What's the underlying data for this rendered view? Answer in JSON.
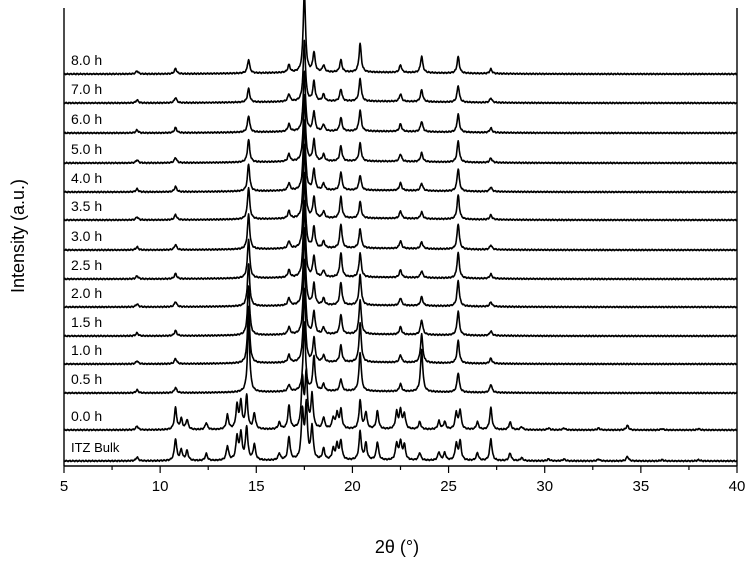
{
  "chart_data": {
    "type": "line",
    "title": "",
    "xlabel": "2θ (°)",
    "ylabel": "Intensity (a.u.)",
    "xlim": [
      5,
      40
    ],
    "xticks": [
      "5",
      "10",
      "15",
      "20",
      "25",
      "30",
      "35",
      "40"
    ],
    "y_ticks_shown": false,
    "stacked_offsets": true,
    "grid": false,
    "series": [
      {
        "name": "ITZ Bulk",
        "peaks": [
          {
            "x": 8.8,
            "h": 0.25
          },
          {
            "x": 10.8,
            "h": 1.45
          },
          {
            "x": 11.1,
            "h": 0.7
          },
          {
            "x": 11.4,
            "h": 0.65
          },
          {
            "x": 12.4,
            "h": 0.45
          },
          {
            "x": 13.5,
            "h": 0.95
          },
          {
            "x": 14.0,
            "h": 1.55
          },
          {
            "x": 14.2,
            "h": 1.75
          },
          {
            "x": 14.5,
            "h": 2.2
          },
          {
            "x": 14.9,
            "h": 1.05
          },
          {
            "x": 16.2,
            "h": 0.45
          },
          {
            "x": 16.7,
            "h": 1.55
          },
          {
            "x": 17.4,
            "h": 3.2
          },
          {
            "x": 17.6,
            "h": 3.6
          },
          {
            "x": 17.9,
            "h": 2.2
          },
          {
            "x": 18.5,
            "h": 0.75
          },
          {
            "x": 19.0,
            "h": 0.7
          },
          {
            "x": 19.2,
            "h": 1.0
          },
          {
            "x": 19.4,
            "h": 1.25
          },
          {
            "x": 20.4,
            "h": 1.9
          },
          {
            "x": 20.7,
            "h": 1.1
          },
          {
            "x": 21.3,
            "h": 1.2
          },
          {
            "x": 22.3,
            "h": 1.1
          },
          {
            "x": 22.5,
            "h": 1.2
          },
          {
            "x": 22.7,
            "h": 1.0
          },
          {
            "x": 23.5,
            "h": 0.5
          },
          {
            "x": 24.5,
            "h": 0.55
          },
          {
            "x": 24.8,
            "h": 0.5
          },
          {
            "x": 25.4,
            "h": 1.1
          },
          {
            "x": 25.6,
            "h": 1.25
          },
          {
            "x": 26.5,
            "h": 0.5
          },
          {
            "x": 27.2,
            "h": 1.45
          },
          {
            "x": 28.2,
            "h": 0.5
          },
          {
            "x": 28.8,
            "h": 0.2
          },
          {
            "x": 30.2,
            "h": 0.12
          },
          {
            "x": 31.0,
            "h": 0.12
          },
          {
            "x": 32.8,
            "h": 0.12
          },
          {
            "x": 34.3,
            "h": 0.3
          },
          {
            "x": 36.1,
            "h": 0.08
          },
          {
            "x": 38.0,
            "h": 0.08
          }
        ]
      },
      {
        "name": "0.0 h",
        "peaks": [
          {
            "x": 8.8,
            "h": 0.25
          },
          {
            "x": 10.8,
            "h": 1.45
          },
          {
            "x": 11.1,
            "h": 0.7
          },
          {
            "x": 11.4,
            "h": 0.65
          },
          {
            "x": 12.4,
            "h": 0.45
          },
          {
            "x": 13.5,
            "h": 0.95
          },
          {
            "x": 14.0,
            "h": 1.55
          },
          {
            "x": 14.2,
            "h": 1.75
          },
          {
            "x": 14.5,
            "h": 2.2
          },
          {
            "x": 14.9,
            "h": 1.05
          },
          {
            "x": 16.2,
            "h": 0.45
          },
          {
            "x": 16.7,
            "h": 1.55
          },
          {
            "x": 17.4,
            "h": 3.2
          },
          {
            "x": 17.6,
            "h": 3.6
          },
          {
            "x": 17.9,
            "h": 2.2
          },
          {
            "x": 18.5,
            "h": 0.75
          },
          {
            "x": 19.0,
            "h": 0.7
          },
          {
            "x": 19.2,
            "h": 1.0
          },
          {
            "x": 19.4,
            "h": 1.25
          },
          {
            "x": 20.4,
            "h": 1.9
          },
          {
            "x": 20.7,
            "h": 1.1
          },
          {
            "x": 21.3,
            "h": 1.2
          },
          {
            "x": 22.3,
            "h": 1.1
          },
          {
            "x": 22.5,
            "h": 1.2
          },
          {
            "x": 22.7,
            "h": 1.0
          },
          {
            "x": 23.5,
            "h": 0.5
          },
          {
            "x": 24.5,
            "h": 0.55
          },
          {
            "x": 24.8,
            "h": 0.5
          },
          {
            "x": 25.4,
            "h": 1.1
          },
          {
            "x": 25.6,
            "h": 1.25
          },
          {
            "x": 26.5,
            "h": 0.5
          },
          {
            "x": 27.2,
            "h": 1.45
          },
          {
            "x": 28.2,
            "h": 0.5
          },
          {
            "x": 28.8,
            "h": 0.2
          },
          {
            "x": 30.2,
            "h": 0.12
          },
          {
            "x": 31.0,
            "h": 0.12
          },
          {
            "x": 32.8,
            "h": 0.12
          },
          {
            "x": 34.3,
            "h": 0.3
          },
          {
            "x": 36.1,
            "h": 0.08
          },
          {
            "x": 38.0,
            "h": 0.08
          }
        ]
      },
      {
        "name": "0.5 h",
        "peaks": [
          {
            "x": 8.8,
            "h": 0.2
          },
          {
            "x": 10.8,
            "h": 0.35
          },
          {
            "x": 14.6,
            "h": 4.7
          },
          {
            "x": 16.7,
            "h": 0.45
          },
          {
            "x": 17.5,
            "h": 4.6
          },
          {
            "x": 18.0,
            "h": 2.3
          },
          {
            "x": 18.5,
            "h": 0.45
          },
          {
            "x": 19.4,
            "h": 0.8
          },
          {
            "x": 20.4,
            "h": 2.6
          },
          {
            "x": 22.5,
            "h": 0.5
          },
          {
            "x": 23.6,
            "h": 2.8
          },
          {
            "x": 25.5,
            "h": 1.3
          },
          {
            "x": 27.2,
            "h": 0.55
          }
        ]
      },
      {
        "name": "1.0 h",
        "peaks": [
          {
            "x": 8.8,
            "h": 0.2
          },
          {
            "x": 10.8,
            "h": 0.35
          },
          {
            "x": 14.6,
            "h": 3.8
          },
          {
            "x": 16.7,
            "h": 0.5
          },
          {
            "x": 17.5,
            "h": 4.9
          },
          {
            "x": 18.0,
            "h": 1.6
          },
          {
            "x": 18.5,
            "h": 0.45
          },
          {
            "x": 19.4,
            "h": 1.1
          },
          {
            "x": 20.4,
            "h": 2.6
          },
          {
            "x": 22.5,
            "h": 0.5
          },
          {
            "x": 23.6,
            "h": 1.9
          },
          {
            "x": 25.5,
            "h": 1.5
          },
          {
            "x": 27.2,
            "h": 0.35
          }
        ]
      },
      {
        "name": "1.5 h",
        "peaks": [
          {
            "x": 8.8,
            "h": 0.2
          },
          {
            "x": 10.8,
            "h": 0.35
          },
          {
            "x": 14.6,
            "h": 3.3
          },
          {
            "x": 16.7,
            "h": 0.5
          },
          {
            "x": 17.5,
            "h": 5.0
          },
          {
            "x": 18.0,
            "h": 1.5
          },
          {
            "x": 18.5,
            "h": 0.45
          },
          {
            "x": 19.4,
            "h": 1.3
          },
          {
            "x": 20.4,
            "h": 2.3
          },
          {
            "x": 22.5,
            "h": 0.5
          },
          {
            "x": 23.6,
            "h": 1.0
          },
          {
            "x": 25.5,
            "h": 1.6
          },
          {
            "x": 27.2,
            "h": 0.3
          }
        ]
      },
      {
        "name": "2.0 h",
        "peaks": [
          {
            "x": 8.8,
            "h": 0.2
          },
          {
            "x": 10.8,
            "h": 0.35
          },
          {
            "x": 14.6,
            "h": 2.8
          },
          {
            "x": 16.7,
            "h": 0.5
          },
          {
            "x": 17.5,
            "h": 5.1
          },
          {
            "x": 18.0,
            "h": 1.4
          },
          {
            "x": 18.5,
            "h": 0.45
          },
          {
            "x": 19.4,
            "h": 1.5
          },
          {
            "x": 20.4,
            "h": 2.0
          },
          {
            "x": 22.5,
            "h": 0.5
          },
          {
            "x": 23.6,
            "h": 0.6
          },
          {
            "x": 25.5,
            "h": 1.7
          },
          {
            "x": 27.2,
            "h": 0.3
          }
        ]
      },
      {
        "name": "2.5 h",
        "peaks": [
          {
            "x": 8.8,
            "h": 0.2
          },
          {
            "x": 10.8,
            "h": 0.35
          },
          {
            "x": 14.6,
            "h": 2.6
          },
          {
            "x": 16.7,
            "h": 0.5
          },
          {
            "x": 17.5,
            "h": 5.1
          },
          {
            "x": 18.0,
            "h": 1.4
          },
          {
            "x": 18.5,
            "h": 0.45
          },
          {
            "x": 19.4,
            "h": 1.6
          },
          {
            "x": 20.4,
            "h": 1.6
          },
          {
            "x": 22.5,
            "h": 0.5
          },
          {
            "x": 23.6,
            "h": 0.45
          },
          {
            "x": 25.5,
            "h": 1.7
          },
          {
            "x": 27.2,
            "h": 0.3
          }
        ]
      },
      {
        "name": "3.0 h",
        "peaks": [
          {
            "x": 8.8,
            "h": 0.2
          },
          {
            "x": 10.8,
            "h": 0.35
          },
          {
            "x": 14.6,
            "h": 2.3
          },
          {
            "x": 16.7,
            "h": 0.5
          },
          {
            "x": 17.5,
            "h": 5.0
          },
          {
            "x": 18.0,
            "h": 1.4
          },
          {
            "x": 18.5,
            "h": 0.45
          },
          {
            "x": 19.4,
            "h": 1.6
          },
          {
            "x": 20.4,
            "h": 1.3
          },
          {
            "x": 22.5,
            "h": 0.5
          },
          {
            "x": 23.6,
            "h": 0.45
          },
          {
            "x": 25.5,
            "h": 1.7
          },
          {
            "x": 27.2,
            "h": 0.3
          }
        ]
      },
      {
        "name": "3.5 h",
        "peaks": [
          {
            "x": 8.8,
            "h": 0.2
          },
          {
            "x": 10.8,
            "h": 0.35
          },
          {
            "x": 14.6,
            "h": 2.1
          },
          {
            "x": 16.7,
            "h": 0.5
          },
          {
            "x": 17.5,
            "h": 4.9
          },
          {
            "x": 18.0,
            "h": 1.4
          },
          {
            "x": 18.5,
            "h": 0.45
          },
          {
            "x": 19.4,
            "h": 1.4
          },
          {
            "x": 20.4,
            "h": 1.1
          },
          {
            "x": 22.5,
            "h": 0.5
          },
          {
            "x": 23.6,
            "h": 0.45
          },
          {
            "x": 25.5,
            "h": 1.6
          },
          {
            "x": 27.2,
            "h": 0.3
          }
        ]
      },
      {
        "name": "4.0 h",
        "peaks": [
          {
            "x": 8.8,
            "h": 0.2
          },
          {
            "x": 10.8,
            "h": 0.35
          },
          {
            "x": 14.6,
            "h": 1.8
          },
          {
            "x": 16.7,
            "h": 0.5
          },
          {
            "x": 17.5,
            "h": 4.7
          },
          {
            "x": 18.0,
            "h": 1.4
          },
          {
            "x": 18.5,
            "h": 0.45
          },
          {
            "x": 19.4,
            "h": 1.2
          },
          {
            "x": 20.4,
            "h": 1.0
          },
          {
            "x": 22.5,
            "h": 0.5
          },
          {
            "x": 23.6,
            "h": 0.5
          },
          {
            "x": 25.5,
            "h": 1.5
          },
          {
            "x": 27.2,
            "h": 0.3
          }
        ]
      },
      {
        "name": "5.0 h",
        "peaks": [
          {
            "x": 8.8,
            "h": 0.2
          },
          {
            "x": 10.8,
            "h": 0.35
          },
          {
            "x": 14.6,
            "h": 1.5
          },
          {
            "x": 16.7,
            "h": 0.5
          },
          {
            "x": 17.5,
            "h": 4.4
          },
          {
            "x": 18.0,
            "h": 1.4
          },
          {
            "x": 18.5,
            "h": 0.45
          },
          {
            "x": 19.4,
            "h": 1.0
          },
          {
            "x": 20.4,
            "h": 1.2
          },
          {
            "x": 22.5,
            "h": 0.5
          },
          {
            "x": 23.6,
            "h": 0.6
          },
          {
            "x": 25.5,
            "h": 1.4
          },
          {
            "x": 27.2,
            "h": 0.3
          }
        ]
      },
      {
        "name": "6.0 h",
        "peaks": [
          {
            "x": 8.8,
            "h": 0.2
          },
          {
            "x": 10.8,
            "h": 0.35
          },
          {
            "x": 14.6,
            "h": 1.1
          },
          {
            "x": 16.7,
            "h": 0.5
          },
          {
            "x": 17.5,
            "h": 4.0
          },
          {
            "x": 18.0,
            "h": 1.3
          },
          {
            "x": 18.5,
            "h": 0.45
          },
          {
            "x": 19.4,
            "h": 0.9
          },
          {
            "x": 20.4,
            "h": 1.4
          },
          {
            "x": 22.5,
            "h": 0.5
          },
          {
            "x": 23.6,
            "h": 0.7
          },
          {
            "x": 25.5,
            "h": 1.2
          },
          {
            "x": 27.2,
            "h": 0.3
          }
        ]
      },
      {
        "name": "7.0 h",
        "peaks": [
          {
            "x": 8.8,
            "h": 0.2
          },
          {
            "x": 10.8,
            "h": 0.35
          },
          {
            "x": 14.6,
            "h": 0.9
          },
          {
            "x": 16.7,
            "h": 0.5
          },
          {
            "x": 17.5,
            "h": 4.0
          },
          {
            "x": 18.0,
            "h": 1.3
          },
          {
            "x": 18.5,
            "h": 0.45
          },
          {
            "x": 19.4,
            "h": 0.8
          },
          {
            "x": 20.4,
            "h": 1.5
          },
          {
            "x": 22.5,
            "h": 0.5
          },
          {
            "x": 23.6,
            "h": 0.8
          },
          {
            "x": 25.5,
            "h": 1.1
          },
          {
            "x": 27.2,
            "h": 0.3
          }
        ]
      },
      {
        "name": "8.0 h",
        "peaks": [
          {
            "x": 8.8,
            "h": 0.2
          },
          {
            "x": 10.8,
            "h": 0.35
          },
          {
            "x": 14.6,
            "h": 0.9
          },
          {
            "x": 16.7,
            "h": 0.5
          },
          {
            "x": 17.5,
            "h": 5.5
          },
          {
            "x": 18.0,
            "h": 1.3
          },
          {
            "x": 18.5,
            "h": 0.45
          },
          {
            "x": 19.4,
            "h": 0.8
          },
          {
            "x": 20.4,
            "h": 1.9
          },
          {
            "x": 22.5,
            "h": 0.5
          },
          {
            "x": 23.6,
            "h": 1.1
          },
          {
            "x": 25.5,
            "h": 1.1
          },
          {
            "x": 27.2,
            "h": 0.3
          }
        ]
      }
    ]
  }
}
